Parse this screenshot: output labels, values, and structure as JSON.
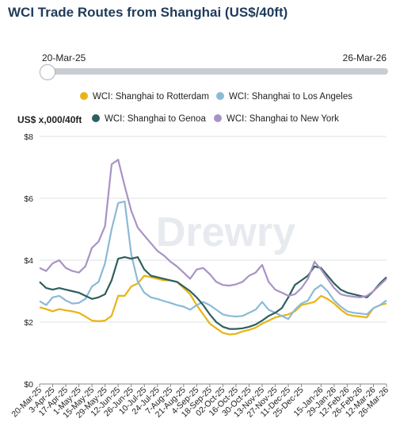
{
  "header": {
    "title": "WCI Trade Routes from Shanghai (US$/40ft)"
  },
  "range": {
    "start": "20-Mar-25",
    "end": "26-Mar-26"
  },
  "watermark": "Drewry",
  "chart_data": {
    "type": "line",
    "ylabel": "US$ x,000/40ft",
    "ylim": [
      0,
      8
    ],
    "yticks": [
      "$0",
      "$2",
      "$4",
      "$6",
      "$8"
    ],
    "grid": "horizontal",
    "legend_placement": "top",
    "x": [
      "20-Mar-25",
      "27-Mar-25",
      "3-Apr-25",
      "10-Apr-25",
      "17-Apr-25",
      "24-Apr-25",
      "1-May-25",
      "8-May-25",
      "15-May-25",
      "22-May-25",
      "29-May-25",
      "5-Jun-25",
      "12-Jun-25",
      "19-Jun-25",
      "26-Jun-25",
      "3-Jul-25",
      "10-Jul-25",
      "17-Jul-25",
      "24-Jul-25",
      "31-Jul-25",
      "7-Aug-25",
      "14-Aug-25",
      "21-Aug-25",
      "28-Aug-25",
      "4-Sep-25",
      "11-Sep-25",
      "18-Sep-25",
      "25-Sep-25",
      "2-Oct-25",
      "9-Oct-25",
      "16-Oct-25",
      "23-Oct-25",
      "30-Oct-25",
      "6-Nov-25",
      "13-Nov-25",
      "20-Nov-25",
      "27-Nov-25",
      "4-Dec-25",
      "11-Dec-25",
      "18-Dec-25",
      "25-Dec-25",
      "1-Jan-26",
      "8-Jan-26",
      "15-Jan-26",
      "22-Jan-26",
      "29-Jan-26",
      "5-Feb-26",
      "12-Feb-26",
      "19-Feb-26",
      "26-Feb-26",
      "5-Mar-26",
      "12-Mar-26",
      "19-Mar-26",
      "26-Mar-26"
    ],
    "xticklabels": [
      "20-Mar-25",
      "3-Apr-25",
      "17-Apr-25",
      "1-May-25",
      "15-May-25",
      "29-May-25",
      "12-Jun-25",
      "26-Jun-25",
      "10-Jul-25",
      "24-Jul-25",
      "7-Aug-25",
      "21-Aug-25",
      "4-Sep-25",
      "18-Sep-25",
      "02-Oct-25",
      "16-Oct-25",
      "30-Oct-25",
      "13-Nov-25",
      "27-Nov-25",
      "11-Dec-25",
      "25-Dec-25",
      "15-Jan-26",
      "29-Jan-26",
      "12-Feb-26",
      "26-Feb-26",
      "12-Mar-26",
      "26-Mar-26"
    ],
    "series": [
      {
        "name": "WCI: Shanghai to Rotterdam",
        "color": "#e8b415",
        "values": [
          2.48,
          2.42,
          2.35,
          2.42,
          2.38,
          2.35,
          2.3,
          2.18,
          2.05,
          2.03,
          2.05,
          2.2,
          2.85,
          2.85,
          3.15,
          3.25,
          3.5,
          3.45,
          3.4,
          3.35,
          3.35,
          3.3,
          3.1,
          2.9,
          2.55,
          2.25,
          1.95,
          1.8,
          1.65,
          1.6,
          1.62,
          1.7,
          1.75,
          1.82,
          1.95,
          2.05,
          2.15,
          2.2,
          2.25,
          2.35,
          2.55,
          2.6,
          2.65,
          2.85,
          2.75,
          2.6,
          2.4,
          2.25,
          2.2,
          2.18,
          2.15,
          2.45,
          2.55,
          2.6
        ]
      },
      {
        "name": "WCI: Shanghai to Los Angeles",
        "color": "#8bbad6",
        "values": [
          2.68,
          2.55,
          2.8,
          2.85,
          2.7,
          2.6,
          2.62,
          2.75,
          3.15,
          3.3,
          3.9,
          5.0,
          5.85,
          5.9,
          4.2,
          3.3,
          2.95,
          2.8,
          2.75,
          2.68,
          2.62,
          2.55,
          2.5,
          2.4,
          2.55,
          2.65,
          2.55,
          2.4,
          2.25,
          2.2,
          2.18,
          2.2,
          2.3,
          2.4,
          2.65,
          2.4,
          2.3,
          2.2,
          2.1,
          2.4,
          2.6,
          2.7,
          3.05,
          3.2,
          3.0,
          2.7,
          2.5,
          2.35,
          2.3,
          2.28,
          2.25,
          2.45,
          2.55,
          2.7
        ]
      },
      {
        "name": "WCI: Shanghai to Genoa",
        "color": "#2e5f5e",
        "values": [
          3.3,
          3.1,
          3.05,
          3.1,
          3.05,
          3.0,
          2.95,
          2.85,
          2.75,
          2.8,
          2.9,
          3.35,
          4.05,
          4.1,
          4.05,
          4.1,
          3.7,
          3.5,
          3.45,
          3.4,
          3.35,
          3.3,
          3.15,
          3.0,
          2.8,
          2.55,
          2.25,
          2.0,
          1.85,
          1.78,
          1.78,
          1.8,
          1.85,
          1.92,
          2.05,
          2.2,
          2.3,
          2.45,
          2.8,
          3.2,
          3.35,
          3.5,
          3.8,
          3.75,
          3.5,
          3.25,
          3.05,
          2.95,
          2.9,
          2.85,
          2.8,
          3.0,
          3.25,
          3.45
        ]
      },
      {
        "name": "WCI: Shanghai to New York",
        "color": "#a893c5",
        "values": [
          3.75,
          3.65,
          3.9,
          4.0,
          3.75,
          3.65,
          3.6,
          3.8,
          4.4,
          4.6,
          5.1,
          7.1,
          7.25,
          6.4,
          5.6,
          5.05,
          4.8,
          4.55,
          4.3,
          4.15,
          3.95,
          3.8,
          3.6,
          3.4,
          3.7,
          3.75,
          3.55,
          3.3,
          3.2,
          3.18,
          3.22,
          3.3,
          3.5,
          3.6,
          3.85,
          3.3,
          3.05,
          2.95,
          2.85,
          2.9,
          3.1,
          3.4,
          3.95,
          3.7,
          3.4,
          3.1,
          2.9,
          2.85,
          2.82,
          2.8,
          2.85,
          3.0,
          3.2,
          3.4
        ]
      }
    ]
  }
}
